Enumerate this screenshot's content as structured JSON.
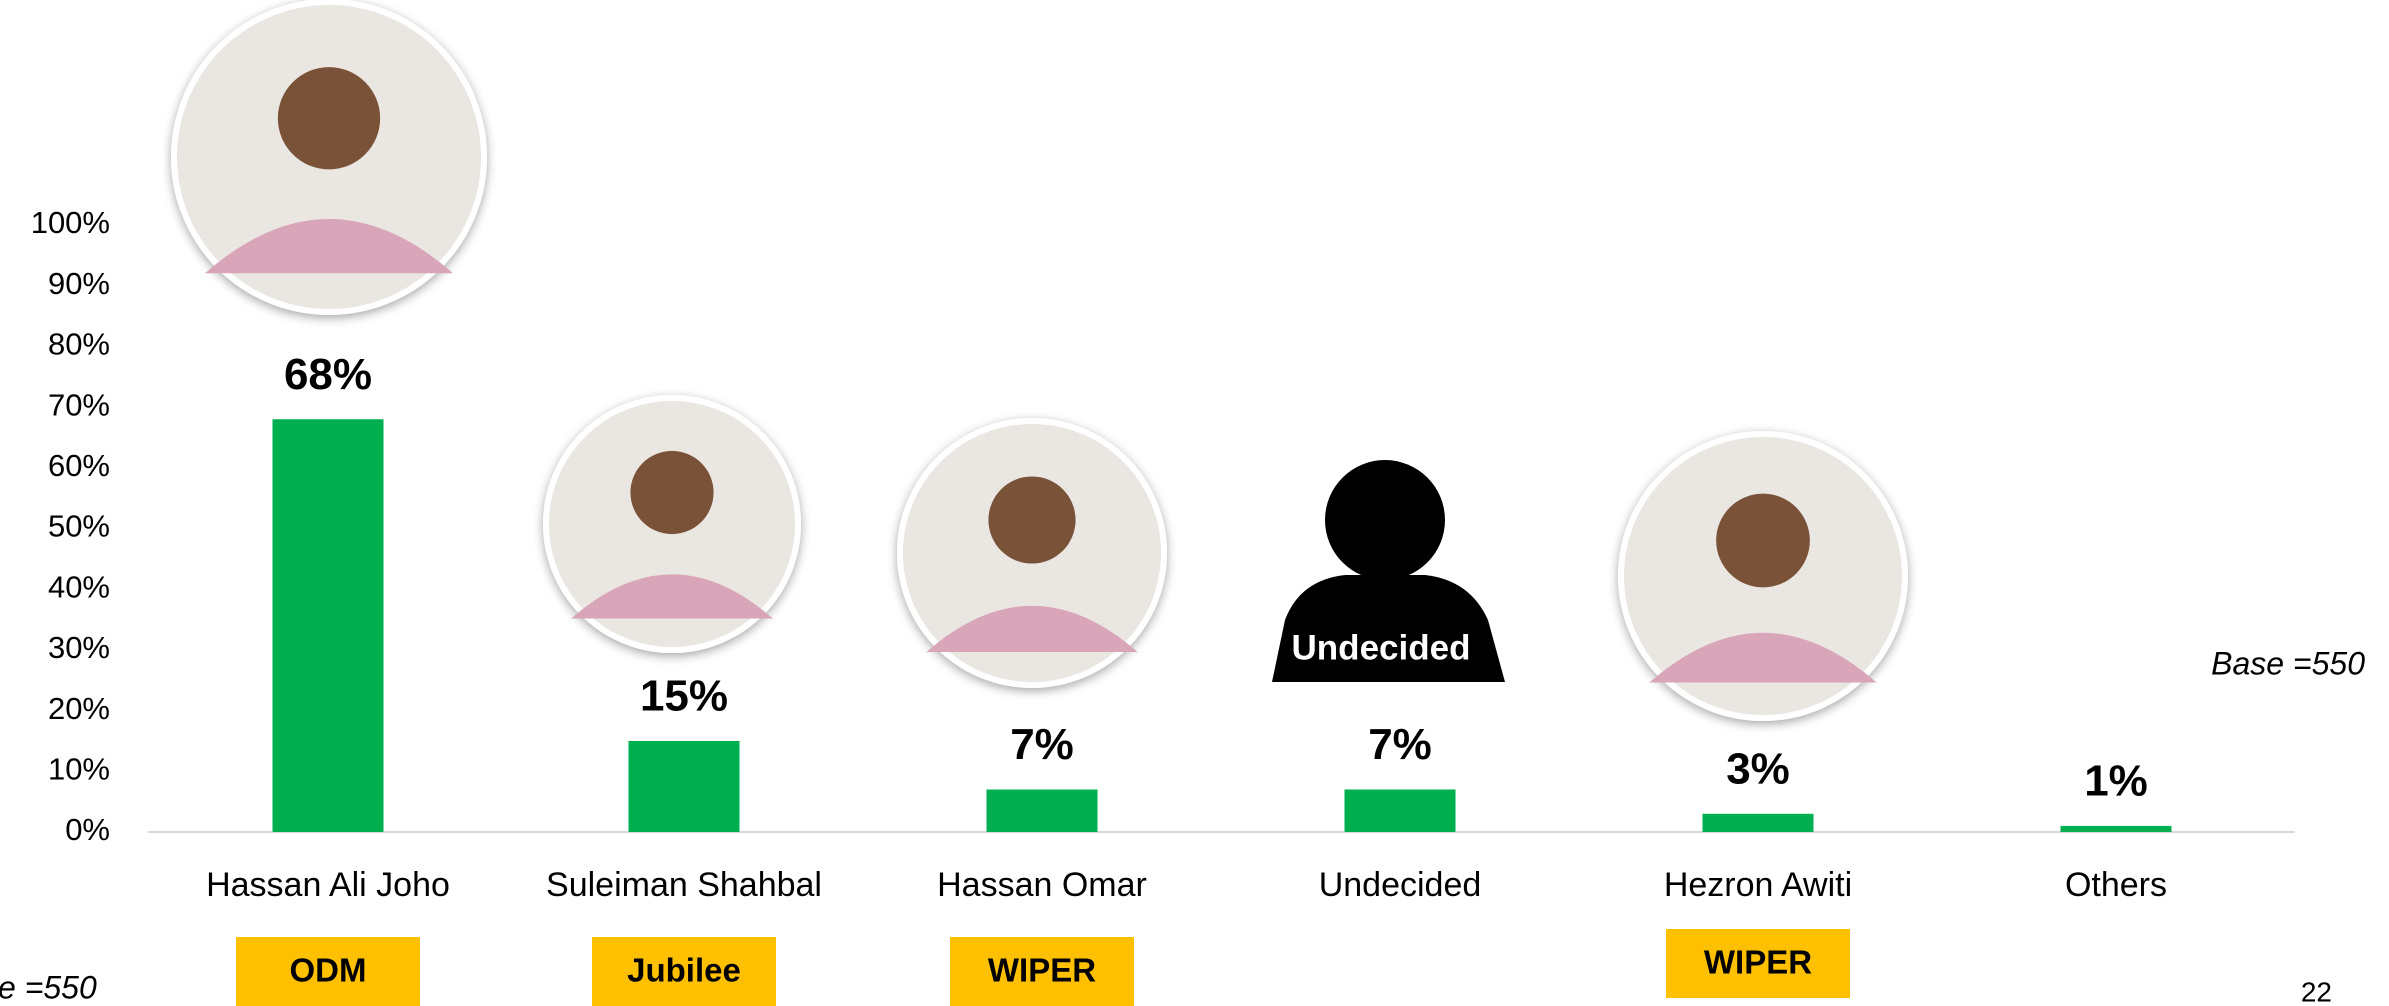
{
  "chart_data": {
    "type": "bar",
    "categories": [
      "Hassan Ali Joho",
      "Suleiman Shahbal",
      "Hassan Omar",
      "Undecided",
      "Hezron Awiti",
      "Others"
    ],
    "values": [
      68,
      15,
      7,
      7,
      3,
      1
    ],
    "value_labels": [
      "68%",
      "15%",
      "7%",
      "7%",
      "3%",
      "1%"
    ],
    "parties": [
      "ODM",
      "Jubilee",
      "WIPER",
      null,
      "WIPER",
      null
    ],
    "silhouette_label": "Undecided",
    "color": "#00b050",
    "party_color": "#ffc000",
    "ylim": [
      0,
      100
    ],
    "yticks": [
      {
        "value": 0,
        "label": "0%"
      },
      {
        "value": 10,
        "label": "10%"
      },
      {
        "value": 20,
        "label": "20%"
      },
      {
        "value": 30,
        "label": "30%"
      },
      {
        "value": 40,
        "label": "40%"
      },
      {
        "value": 50,
        "label": "50%"
      },
      {
        "value": 60,
        "label": "60%"
      },
      {
        "value": 70,
        "label": "70%"
      },
      {
        "value": 80,
        "label": "80%"
      },
      {
        "value": 90,
        "label": "90%"
      },
      {
        "value": 100,
        "label": "100%"
      }
    ],
    "base_note": "Base =550",
    "base_note_cut": "e =550",
    "page_number": "22"
  }
}
